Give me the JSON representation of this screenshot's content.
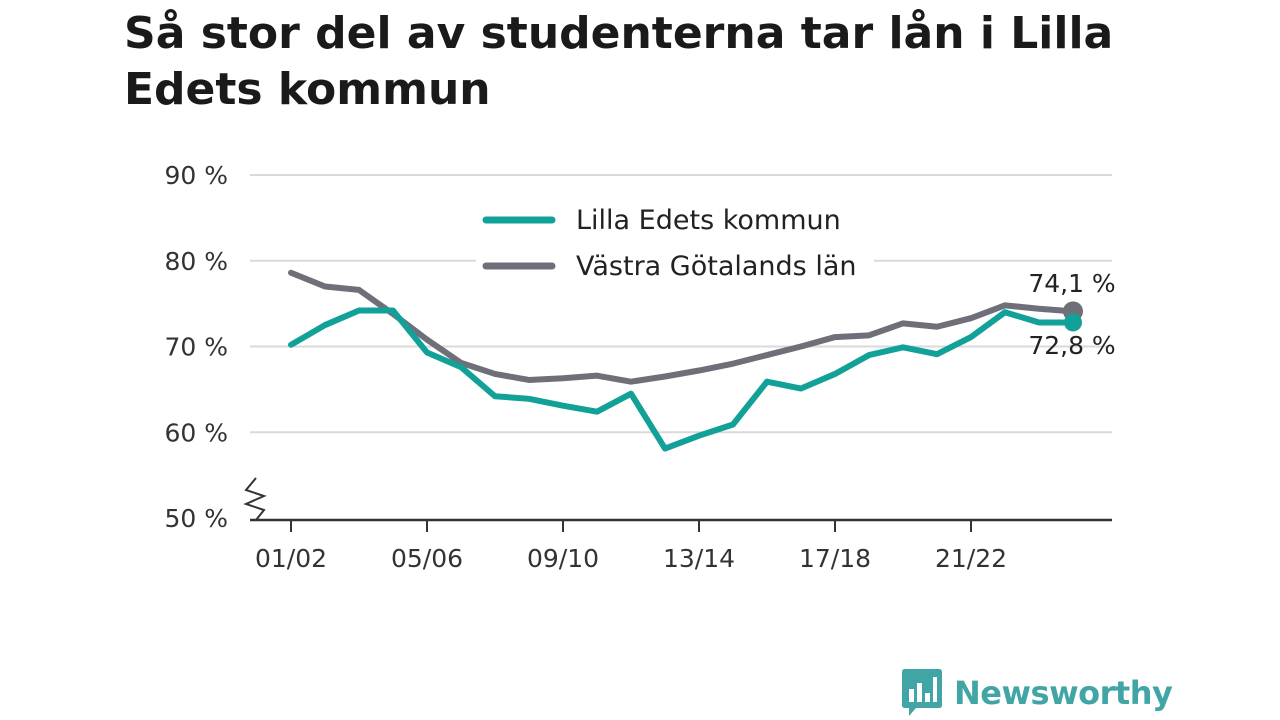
{
  "title": "Så stor del av studenterna tar lån i Lilla Edets kommun",
  "brand": "Newsworthy",
  "colors": {
    "lilla_edet": "#12a198",
    "vastra_gotaland": "#6f6f79",
    "grid": "#dadada",
    "axis": "#333333",
    "brand": "#42a5a5"
  },
  "chart_data": {
    "type": "line",
    "title": "Så stor del av studenterna tar lån i Lilla Edets kommun",
    "xlabel": "",
    "ylabel": "",
    "x": [
      "01/02",
      "02/03",
      "03/04",
      "04/05",
      "05/06",
      "06/07",
      "07/08",
      "08/09",
      "09/10",
      "10/11",
      "11/12",
      "12/13",
      "13/14",
      "14/15",
      "15/16",
      "16/17",
      "17/18",
      "18/19",
      "19/20",
      "20/21",
      "21/22",
      "22/23",
      "23/24",
      "24/25"
    ],
    "x_tick_labels": [
      "01/02",
      "05/06",
      "09/10",
      "13/14",
      "17/18",
      "21/22"
    ],
    "y_ticks": [
      50,
      60,
      70,
      80,
      90
    ],
    "y_tick_labels": [
      "50 %",
      "60 %",
      "70 %",
      "80 %",
      "90 %"
    ],
    "ylim": [
      50,
      90
    ],
    "axis_break": true,
    "grid": true,
    "legend_position": "top-center",
    "series": [
      {
        "name": "Lilla Edets kommun",
        "color": "#12a198",
        "values": [
          70.2,
          72.5,
          74.2,
          74.2,
          69.3,
          67.6,
          64.2,
          63.9,
          63.1,
          62.4,
          64.5,
          58.1,
          59.6,
          60.9,
          65.9,
          65.1,
          66.8,
          69.0,
          69.9,
          69.1,
          71.1,
          74.0,
          72.8,
          72.8
        ],
        "end_label": "72,8 %"
      },
      {
        "name": "Västra Götalands län",
        "color": "#6f6f79",
        "values": [
          78.6,
          77.0,
          76.6,
          73.8,
          70.8,
          68.1,
          66.8,
          66.1,
          66.3,
          66.6,
          65.9,
          66.5,
          67.2,
          68.0,
          69.0,
          70.0,
          71.1,
          71.3,
          72.7,
          72.3,
          73.3,
          74.8,
          74.4,
          74.1
        ],
        "end_label": "74,1 %"
      }
    ]
  }
}
